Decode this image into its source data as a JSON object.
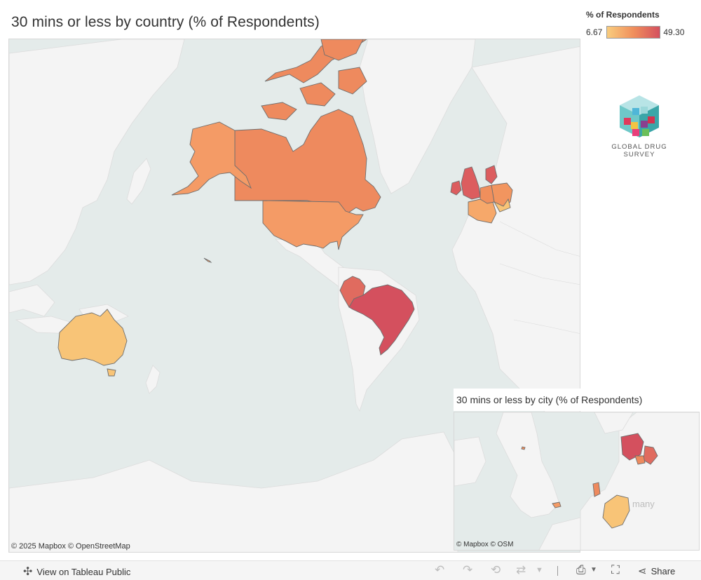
{
  "title": "30 mins or less by country (% of Respondents)",
  "legend": {
    "title": "% of Respondents",
    "min": "6.67",
    "max": "49.30",
    "colors": {
      "low": "#f9cd7e",
      "mid": "#f08f5c",
      "high": "#d4505e"
    }
  },
  "logo": {
    "text": "GLOBAL DRUG SURVEY"
  },
  "inset": {
    "title": "30 mins or less by city (% of Respondents)",
    "label": "many",
    "attribution": "© Mapbox  © OSM"
  },
  "main_attribution": "© 2025 Mapbox  © OpenStreetMap",
  "map_colors": {
    "ocean": "#e4ebea",
    "land": "#f4f4f4",
    "border": "#6e6e6e"
  },
  "regions": [
    {
      "name": "Canada",
      "color": "#ee8a5e"
    },
    {
      "name": "United States",
      "color": "#f49b66"
    },
    {
      "name": "Brazil",
      "color": "#d4505e"
    },
    {
      "name": "Colombia",
      "color": "#e06b5f"
    },
    {
      "name": "Australia",
      "color": "#f8c477"
    },
    {
      "name": "United Kingdom",
      "color": "#dc5d5f"
    },
    {
      "name": "France",
      "color": "#f6a86a"
    },
    {
      "name": "Germany",
      "color": "#f2955f"
    }
  ],
  "toolbar": {
    "view_label": "View on Tableau Public",
    "share_label": "Share"
  }
}
